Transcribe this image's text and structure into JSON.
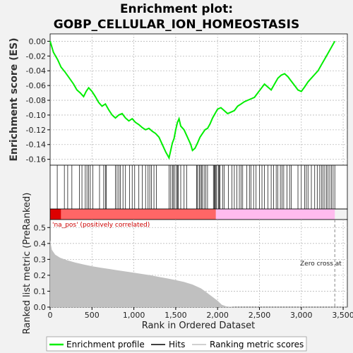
{
  "chart_data": {
    "type": "line",
    "title_line1": "Enrichment plot:",
    "title_line2": "GOBP_CELLULAR_ION_HOMEOSTASIS",
    "es_panel": {
      "ylabel": "Enrichment score (ES)",
      "ylim": [
        -0.168,
        0.01
      ],
      "yticks": [
        0.0,
        -0.02,
        -0.04,
        -0.06,
        -0.08,
        -0.1,
        -0.12,
        -0.14,
        -0.16
      ],
      "ytick_labels": [
        "0.00",
        "-0.02",
        "-0.04",
        "-0.06",
        "-0.08",
        "-0.10",
        "-0.12",
        "-0.14",
        "-0.16"
      ],
      "grid": true,
      "line_color": "#00ee00",
      "x": [
        0,
        40,
        90,
        130,
        180,
        230,
        280,
        320,
        360,
        400,
        430,
        460,
        500,
        540,
        580,
        620,
        660,
        700,
        740,
        780,
        820,
        860,
        900,
        940,
        980,
        1020,
        1060,
        1100,
        1140,
        1180,
        1220,
        1260,
        1300,
        1340,
        1380,
        1420,
        1440,
        1460,
        1480,
        1500,
        1520,
        1540,
        1560,
        1600,
        1640,
        1680,
        1700,
        1730,
        1760,
        1790,
        1820,
        1850,
        1880,
        1910,
        1940,
        1970,
        2000,
        2040,
        2080,
        2120,
        2160,
        2200,
        2240,
        2280,
        2320,
        2360,
        2400,
        2440,
        2480,
        2520,
        2560,
        2600,
        2640,
        2680,
        2720,
        2760,
        2800,
        2840,
        2880,
        2920,
        2960,
        3000,
        3040,
        3080,
        3120,
        3160,
        3200,
        3240,
        3280,
        3320,
        3360,
        3400
      ],
      "y": [
        0.0,
        -0.015,
        -0.025,
        -0.035,
        -0.042,
        -0.05,
        -0.058,
        -0.066,
        -0.07,
        -0.075,
        -0.068,
        -0.063,
        -0.068,
        -0.075,
        -0.083,
        -0.088,
        -0.085,
        -0.093,
        -0.1,
        -0.104,
        -0.1,
        -0.098,
        -0.104,
        -0.108,
        -0.105,
        -0.11,
        -0.113,
        -0.117,
        -0.12,
        -0.118,
        -0.122,
        -0.125,
        -0.13,
        -0.14,
        -0.15,
        -0.158,
        -0.148,
        -0.138,
        -0.132,
        -0.12,
        -0.11,
        -0.105,
        -0.115,
        -0.12,
        -0.13,
        -0.14,
        -0.148,
        -0.145,
        -0.138,
        -0.13,
        -0.125,
        -0.12,
        -0.118,
        -0.112,
        -0.104,
        -0.098,
        -0.092,
        -0.09,
        -0.094,
        -0.098,
        -0.096,
        -0.094,
        -0.088,
        -0.085,
        -0.082,
        -0.08,
        -0.078,
        -0.076,
        -0.07,
        -0.064,
        -0.058,
        -0.062,
        -0.066,
        -0.058,
        -0.05,
        -0.046,
        -0.044,
        -0.048,
        -0.054,
        -0.06,
        -0.066,
        -0.068,
        -0.062,
        -0.055,
        -0.05,
        -0.045,
        -0.04,
        -0.032,
        -0.024,
        -0.016,
        -0.008,
        0.0
      ]
    },
    "hits_panel": {
      "hit_ranks": [
        85,
        170,
        210,
        260,
        350,
        380,
        420,
        440,
        460,
        480,
        510,
        590,
        640,
        660,
        670,
        780,
        800,
        820,
        840,
        870,
        900,
        950,
        980,
        1010,
        1060,
        1100,
        1140,
        1170,
        1190,
        1210,
        1240,
        1270,
        1420,
        1440,
        1460,
        1470,
        1490,
        1510,
        1520,
        1530,
        1560,
        1600,
        1630,
        1750,
        1760,
        1780,
        1790,
        1810,
        1820,
        1840,
        1860,
        1880,
        1950,
        1960,
        1970,
        1980,
        1990,
        2010,
        2020,
        2030,
        2060,
        2080,
        2130,
        2170,
        2200,
        2230,
        2260,
        2280,
        2300,
        2350,
        2380,
        2400,
        2430,
        2460,
        2500,
        2530,
        2560,
        2600,
        2640,
        2670,
        2700,
        2720,
        2750,
        2770,
        2790,
        2830,
        2860,
        2880,
        2960,
        3000,
        3040,
        3060,
        3080,
        3120,
        3160,
        3190,
        3220,
        3240,
        3260,
        3280,
        3300,
        3320,
        3340,
        3360,
        3380,
        3400
      ],
      "hit_color": "#000000"
    },
    "heat_bar": {
      "pos_color": "#dd0000",
      "mid_color": "#ff6666",
      "neg_color": "#ffbbee",
      "split_rank": 1980
    },
    "metric_panel": {
      "ylabel": "Ranked list metric (PreRanked)",
      "ylim": [
        0,
        0.55
      ],
      "yticks": [
        0.0,
        0.1,
        0.2,
        0.3,
        0.4,
        0.5
      ],
      "ytick_labels": [
        "0.0",
        "0.1",
        "0.2",
        "0.3",
        "0.4",
        "0.5"
      ],
      "fill_color": "#c0c0c0",
      "x": [
        0,
        20,
        60,
        120,
        200,
        300,
        400,
        500,
        600,
        700,
        800,
        900,
        1000,
        1100,
        1200,
        1300,
        1400,
        1500,
        1600,
        1700,
        1800,
        1850,
        1900,
        1950,
        2000,
        2050,
        2100,
        2150,
        2200,
        2300,
        3400
      ],
      "y": [
        0.42,
        0.36,
        0.33,
        0.31,
        0.295,
        0.28,
        0.268,
        0.257,
        0.248,
        0.24,
        0.232,
        0.224,
        0.216,
        0.208,
        0.2,
        0.19,
        0.18,
        0.17,
        0.158,
        0.142,
        0.118,
        0.1,
        0.08,
        0.06,
        0.04,
        0.015,
        0.005,
        0.002,
        0.0,
        0.0,
        0.0
      ],
      "pos_annotation": "'na_pos' (positively correlated)",
      "zero_cross_label": "Zero cross at",
      "zero_cross_rank": 3400,
      "xlabel": "Rank in Ordered Dataset"
    },
    "xaxis": {
      "xlim": [
        0,
        3550
      ],
      "xticks": [
        0,
        500,
        1000,
        1500,
        2000,
        2500,
        3000,
        3500
      ],
      "xtick_labels": [
        "0",
        "500",
        "1,000",
        "1,500",
        "2,000",
        "2,500",
        "3,000",
        "3,500"
      ]
    },
    "legend": {
      "items": [
        {
          "label": "Enrichment profile",
          "color": "#00ee00"
        },
        {
          "label": "Hits",
          "color": "#000000"
        },
        {
          "label": "Ranking metric scores",
          "color": "#c0c0c0"
        }
      ]
    }
  }
}
